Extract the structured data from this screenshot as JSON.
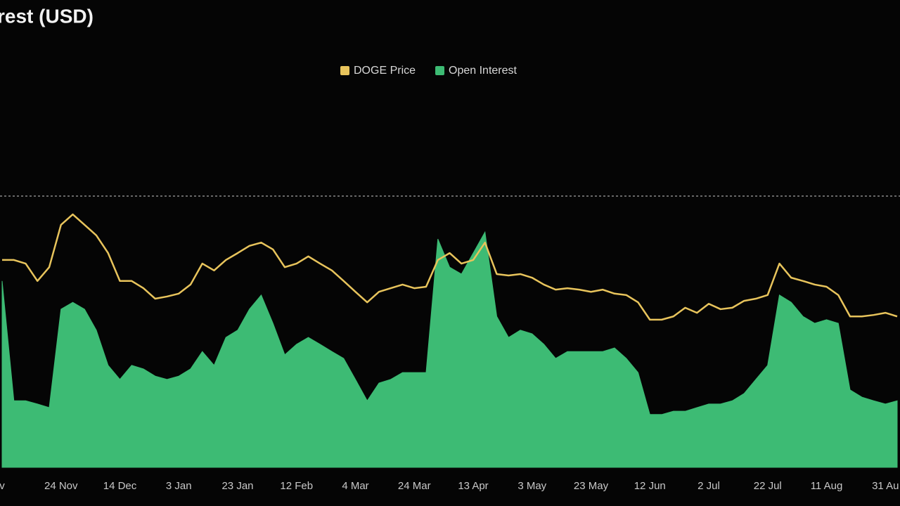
{
  "chart_data": {
    "type": "line-area",
    "title": "rest (USD)",
    "categories": [
      "v",
      null,
      null,
      null,
      null,
      "24 Nov",
      null,
      null,
      null,
      null,
      "14 Dec",
      null,
      null,
      null,
      null,
      "3 Jan",
      null,
      null,
      null,
      null,
      "23 Jan",
      null,
      null,
      null,
      null,
      "12 Feb",
      null,
      null,
      null,
      null,
      "4 Mar",
      null,
      null,
      null,
      null,
      "24 Mar",
      null,
      null,
      null,
      null,
      "13 Apr",
      null,
      null,
      null,
      null,
      "3 May",
      null,
      null,
      null,
      null,
      "23 May",
      null,
      null,
      null,
      null,
      "12 Jun",
      null,
      null,
      null,
      null,
      "2 Jul",
      null,
      null,
      null,
      null,
      "22 Jul",
      null,
      null,
      null,
      null,
      "11 Aug",
      null,
      null,
      null,
      null,
      "31 Au",
      null
    ],
    "series": [
      {
        "name": "DOGE Price",
        "color": "#e8c45c",
        "style": "line",
        "values": [
          57.3,
          57.3,
          56.3,
          51.5,
          55.3,
          67.0,
          69.9,
          67.0,
          64.1,
          59.2,
          51.5,
          51.5,
          49.5,
          46.6,
          47.2,
          48.0,
          50.5,
          56.3,
          54.4,
          57.3,
          59.2,
          61.2,
          62.1,
          60.2,
          55.3,
          56.3,
          58.3,
          56.3,
          54.4,
          51.5,
          48.5,
          45.6,
          48.5,
          49.5,
          50.5,
          49.5,
          49.9,
          57.3,
          59.2,
          56.3,
          57.3,
          62.1,
          53.4,
          53.0,
          53.4,
          52.4,
          50.5,
          49.1,
          49.5,
          49.1,
          48.5,
          49.1,
          48.0,
          47.6,
          45.6,
          40.8,
          40.8,
          41.7,
          44.1,
          42.7,
          45.2,
          43.7,
          44.1,
          46.0,
          46.6,
          47.6,
          56.3,
          52.4,
          51.5,
          50.5,
          49.9,
          47.6,
          41.7,
          41.7,
          42.1,
          42.7,
          41.7
        ]
      },
      {
        "name": "Open Interest",
        "color": "#3dbb74",
        "style": "area",
        "values": [
          51.5,
          18.4,
          18.4,
          17.5,
          16.5,
          43.7,
          45.6,
          43.7,
          37.9,
          28.2,
          24.3,
          28.2,
          27.2,
          25.2,
          24.3,
          25.2,
          27.2,
          32.0,
          28.2,
          35.9,
          37.9,
          43.7,
          47.6,
          39.8,
          31.1,
          34.0,
          35.9,
          34.0,
          32.0,
          30.1,
          24.3,
          18.4,
          23.3,
          24.3,
          26.2,
          26.2,
          26.2,
          63.1,
          55.3,
          53.4,
          59.2,
          65.0,
          41.7,
          35.9,
          37.9,
          36.9,
          34.0,
          30.1,
          32.0,
          32.0,
          32.0,
          32.0,
          33.0,
          30.1,
          26.2,
          14.6,
          14.6,
          15.5,
          15.5,
          16.5,
          17.5,
          17.5,
          18.4,
          20.4,
          24.3,
          28.2,
          47.6,
          45.6,
          41.7,
          39.8,
          40.8,
          39.8,
          21.4,
          19.4,
          18.4,
          17.5,
          18.4
        ]
      }
    ],
    "ylim": [
      0,
      100
    ],
    "legend": "top"
  }
}
